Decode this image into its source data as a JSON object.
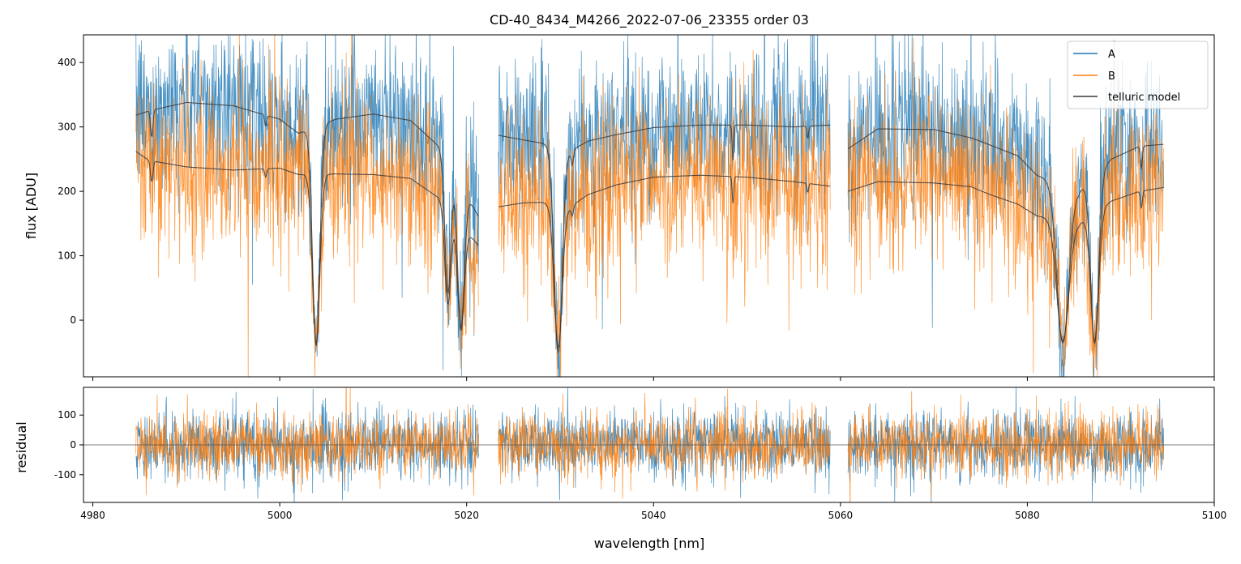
{
  "chart_data": {
    "type": "line",
    "title": "CD-40_8434_M4266_2022-07-06_23355  order 03",
    "xlabel": "wavelength [nm]",
    "xlim": [
      4979,
      5100
    ],
    "x_ticks": [
      4980,
      5000,
      5020,
      5040,
      5060,
      5080,
      5100
    ],
    "colors": {
      "A": "#1f77b4",
      "B": "#ff7f0e",
      "model": "#3a3a3a",
      "zero": "#555555"
    },
    "segments": [
      {
        "range": [
          4984.6,
          5021.3
        ]
      },
      {
        "range": [
          5023.4,
          5058.9
        ]
      },
      {
        "range": [
          5060.8,
          5094.6
        ]
      }
    ],
    "telluric_lines": [
      {
        "center": 5003.9,
        "width": 0.55,
        "depth": 1.05
      },
      {
        "center": 5018.0,
        "width": 0.45,
        "depth": 0.75
      },
      {
        "center": 5019.4,
        "width": 0.5,
        "depth": 0.95
      },
      {
        "center": 5029.8,
        "width": 0.6,
        "depth": 1.1
      },
      {
        "center": 5083.8,
        "width": 0.9,
        "depth": 1.05
      },
      {
        "center": 5087.2,
        "width": 0.6,
        "depth": 1.05
      },
      {
        "center": 4986.3,
        "width": 0.18,
        "depth": 0.12
      },
      {
        "center": 4998.5,
        "width": 0.15,
        "depth": 0.05
      },
      {
        "center": 5031.3,
        "width": 0.18,
        "depth": 0.08
      },
      {
        "center": 5048.5,
        "width": 0.12,
        "depth": 0.17
      },
      {
        "center": 5056.5,
        "width": 0.12,
        "depth": 0.06
      },
      {
        "center": 5092.2,
        "width": 0.15,
        "depth": 0.12
      }
    ],
    "panels": [
      {
        "name": "flux",
        "ylabel": "flux [ADU]",
        "ylim": [
          -88,
          443
        ],
        "y_ticks": [
          0,
          100,
          200,
          300,
          400
        ],
        "series": [
          {
            "name": "A",
            "model_continuum": [
              {
                "x": [
                  4984.6,
                  4986,
                  4990,
                  4995,
                  5000,
                  5002,
                  5006,
                  5010,
                  5014,
                  5017,
                  5021.3
                ],
                "y": [
                  318,
                  325,
                  338,
                  333,
                  312,
                  290,
                  312,
                  320,
                  310,
                  270,
                  160
                ]
              },
              {
                "x": [
                  5023.4,
                  5026,
                  5028,
                  5031,
                  5033,
                  5036,
                  5040,
                  5045,
                  5050,
                  5055,
                  5058.9
                ],
                "y": [
                  287,
                  280,
                  275,
                  262,
                  278,
                  288,
                  299,
                  303,
                  303,
                  300,
                  303
                ]
              },
              {
                "x": [
                  5060.8,
                  5064,
                  5070,
                  5074,
                  5076,
                  5079,
                  5081,
                  5085.5,
                  5089,
                  5092,
                  5094.6
                ],
                "y": [
                  266,
                  297,
                  296,
                  283,
                  272,
                  255,
                  225,
                  200,
                  250,
                  270,
                  273
                ]
              }
            ],
            "noise": 55
          },
          {
            "name": "B",
            "model_continuum": [
              {
                "x": [
                  4984.6,
                  4986,
                  4990,
                  4995,
                  5000,
                  5002,
                  5006,
                  5010,
                  5014,
                  5017,
                  5021.3
                ],
                "y": [
                  262,
                  248,
                  238,
                  233,
                  236,
                  226,
                  227,
                  226,
                  220,
                  190,
                  115
                ]
              },
              {
                "x": [
                  5023.4,
                  5026,
                  5028,
                  5031,
                  5033,
                  5036,
                  5040,
                  5045,
                  5050,
                  5055,
                  5058.9
                ],
                "y": [
                  176,
                  182,
                  183,
                  175,
                  195,
                  210,
                  222,
                  225,
                  222,
                  215,
                  208
                ]
              },
              {
                "x": [
                  5060.8,
                  5064,
                  5070,
                  5074,
                  5076,
                  5079,
                  5081,
                  5085.5,
                  5089,
                  5092,
                  5094.6
                ],
                "y": [
                  200,
                  215,
                  213,
                  207,
                  195,
                  180,
                  162,
                  150,
                  185,
                  200,
                  206
                ]
              }
            ],
            "noise": 55
          }
        ]
      },
      {
        "name": "residual",
        "ylabel": "residual",
        "ylim": [
          -193,
          193
        ],
        "y_ticks": [
          -100,
          0,
          100
        ],
        "series": [
          {
            "name": "A",
            "noise": 58
          },
          {
            "name": "B",
            "noise": 55
          }
        ]
      }
    ],
    "legend": {
      "position": "upper-right",
      "entries": [
        {
          "label": "A",
          "color": "#1f77b4"
        },
        {
          "label": "B",
          "color": "#ff7f0e"
        },
        {
          "label": "telluric model",
          "color": "#3a3a3a"
        }
      ]
    }
  }
}
